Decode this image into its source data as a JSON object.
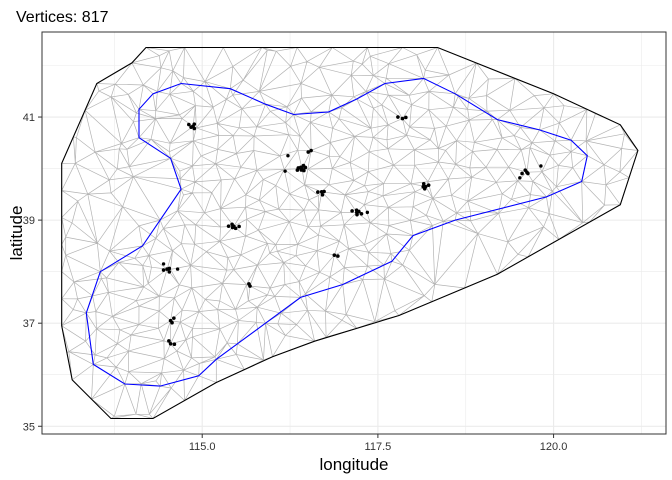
{
  "chart_data": {
    "type": "scatter",
    "title": "Vertices:  817",
    "xlabel": "longitude",
    "ylabel": "latitude",
    "xlim": [
      112.72,
      121.6
    ],
    "ylim": [
      34.85,
      42.65
    ],
    "xticks": [
      115.0,
      117.5,
      120.0
    ],
    "xtick_labels": [
      "115.0",
      "117.5",
      "120.0"
    ],
    "yticks": [
      35,
      37,
      39,
      41
    ],
    "ytick_labels": [
      "35",
      "37",
      "39",
      "41"
    ],
    "grid": true,
    "legend": "none",
    "colors": {
      "mesh_edges": "#b3b3b3",
      "outer_boundary": "#000000",
      "inner_boundary": "#0000ff",
      "points": "#000000",
      "grid": "#ebebeb",
      "panel_border": "#333333"
    },
    "outer_boundary": [
      [
        114.2,
        42.35
      ],
      [
        115.85,
        42.35
      ],
      [
        118.35,
        42.35
      ],
      [
        120.0,
        41.45
      ],
      [
        120.95,
        40.85
      ],
      [
        121.2,
        40.35
      ],
      [
        120.95,
        39.3
      ],
      [
        119.2,
        37.95
      ],
      [
        117.8,
        37.15
      ],
      [
        116.6,
        36.65
      ],
      [
        116.0,
        36.35
      ],
      [
        115.2,
        35.85
      ],
      [
        114.3,
        35.15
      ],
      [
        113.7,
        35.15
      ],
      [
        113.15,
        35.9
      ],
      [
        113.0,
        36.95
      ],
      [
        113.0,
        40.1
      ],
      [
        113.5,
        41.65
      ],
      [
        114.0,
        42.05
      ]
    ],
    "inner_boundary": [
      [
        114.7,
        41.65
      ],
      [
        115.4,
        41.55
      ],
      [
        115.9,
        41.25
      ],
      [
        116.3,
        41.05
      ],
      [
        116.8,
        41.1
      ],
      [
        117.2,
        41.35
      ],
      [
        117.6,
        41.65
      ],
      [
        118.15,
        41.75
      ],
      [
        118.6,
        41.45
      ],
      [
        119.2,
        40.95
      ],
      [
        119.8,
        40.75
      ],
      [
        120.25,
        40.55
      ],
      [
        120.48,
        40.25
      ],
      [
        120.4,
        39.75
      ],
      [
        119.9,
        39.45
      ],
      [
        118.6,
        39.0
      ],
      [
        118.0,
        38.7
      ],
      [
        117.7,
        38.2
      ],
      [
        117.0,
        37.75
      ],
      [
        116.4,
        37.5
      ],
      [
        115.9,
        37.0
      ],
      [
        115.5,
        36.6
      ],
      [
        115.2,
        36.3
      ],
      [
        114.95,
        35.98
      ],
      [
        114.4,
        35.78
      ],
      [
        113.9,
        35.82
      ],
      [
        113.45,
        36.2
      ],
      [
        113.35,
        37.2
      ],
      [
        113.55,
        38.0
      ],
      [
        114.15,
        38.5
      ],
      [
        114.4,
        39.0
      ],
      [
        114.7,
        39.6
      ],
      [
        114.55,
        40.2
      ],
      [
        114.1,
        40.6
      ],
      [
        114.1,
        41.15
      ],
      [
        114.3,
        41.45
      ]
    ],
    "point_clusters": [
      {
        "x": 114.87,
        "y": 40.82,
        "n": 5
      },
      {
        "x": 115.45,
        "y": 38.88,
        "n": 6
      },
      {
        "x": 114.5,
        "y": 38.05,
        "n": 4
      },
      {
        "x": 114.55,
        "y": 37.05,
        "n": 3
      },
      {
        "x": 114.55,
        "y": 36.6,
        "n": 3
      },
      {
        "x": 115.68,
        "y": 37.72,
        "n": 2
      },
      {
        "x": 116.42,
        "y": 40.0,
        "n": 8
      },
      {
        "x": 116.55,
        "y": 40.35,
        "n": 2
      },
      {
        "x": 116.7,
        "y": 39.55,
        "n": 4
      },
      {
        "x": 116.88,
        "y": 38.32,
        "n": 2
      },
      {
        "x": 117.2,
        "y": 39.15,
        "n": 6
      },
      {
        "x": 117.85,
        "y": 40.97,
        "n": 3
      },
      {
        "x": 118.18,
        "y": 39.65,
        "n": 5
      },
      {
        "x": 119.62,
        "y": 39.93,
        "n": 4
      }
    ],
    "single_points": [
      [
        116.22,
        40.25
      ],
      [
        116.18,
        39.95
      ],
      [
        114.45,
        38.15
      ],
      [
        114.65,
        38.05
      ],
      [
        117.35,
        39.15
      ],
      [
        119.82,
        40.05
      ],
      [
        119.52,
        39.82
      ]
    ]
  }
}
